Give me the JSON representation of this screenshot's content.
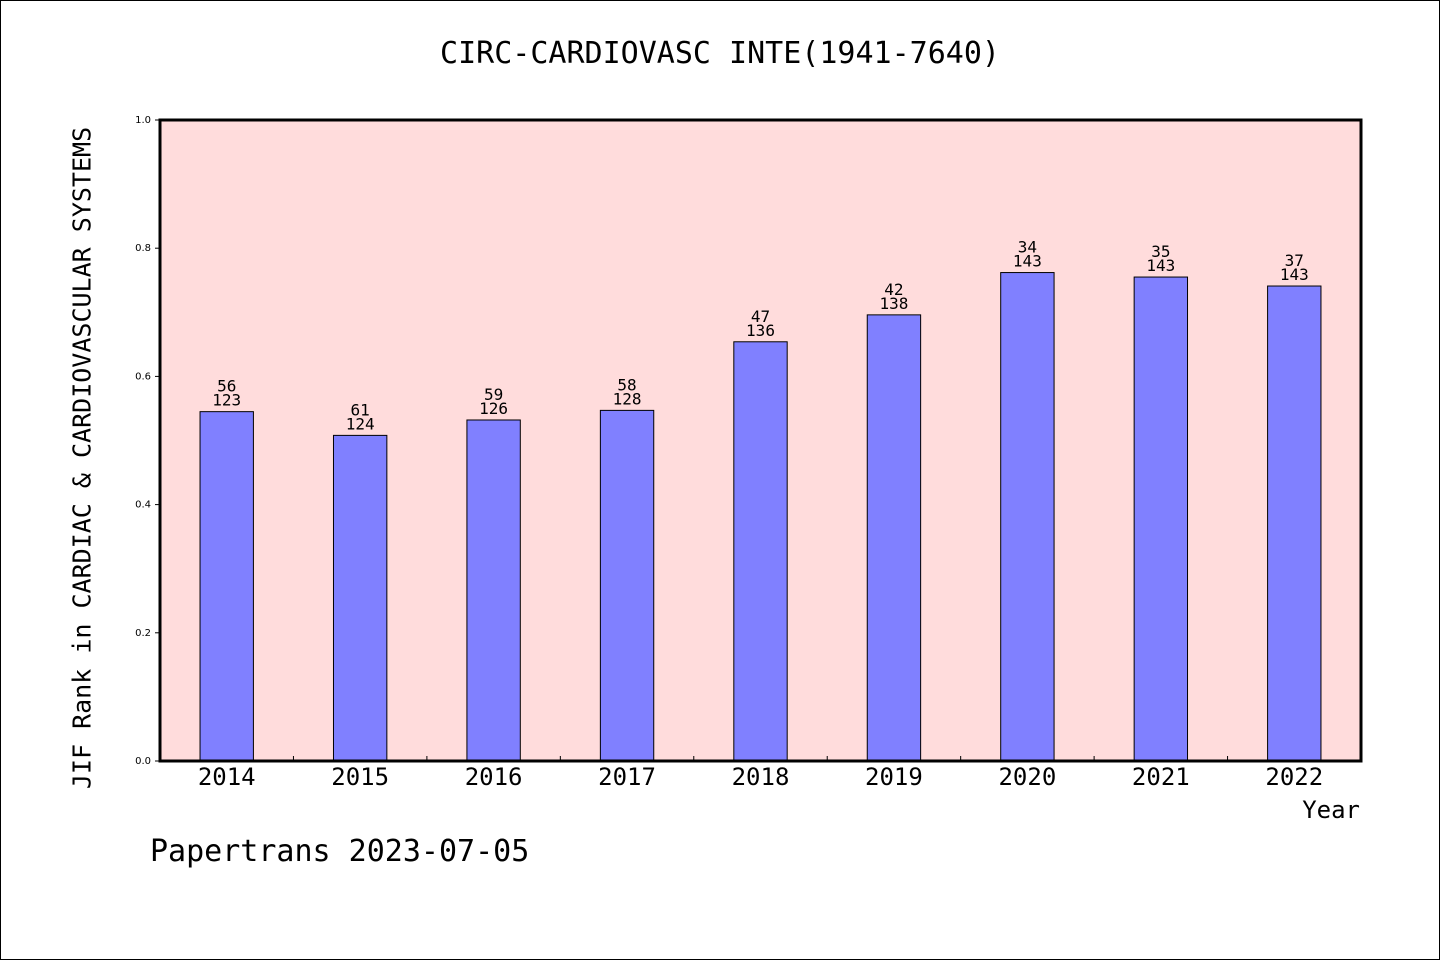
{
  "chart_data": {
    "type": "bar",
    "title": "CIRC-CARDIOVASC INTE(1941-7640)",
    "xlabel": "Year",
    "ylabel": "JIF Rank in CARDIAC & CARDIOVASCULAR SYSTEMS",
    "ylim": [
      0,
      1.0
    ],
    "yticks": [
      "0.0",
      "0.2",
      "0.4",
      "0.6",
      "0.8",
      "1.0"
    ],
    "categories": [
      "2014",
      "2015",
      "2016",
      "2017",
      "2018",
      "2019",
      "2020",
      "2021",
      "2022"
    ],
    "values": [
      0.545,
      0.508,
      0.532,
      0.547,
      0.654,
      0.696,
      0.762,
      0.755,
      0.741
    ],
    "rank": [
      "56",
      "61",
      "59",
      "58",
      "47",
      "42",
      "34",
      "35",
      "37"
    ],
    "total": [
      "123",
      "124",
      "126",
      "128",
      "136",
      "138",
      "143",
      "143",
      "143"
    ],
    "grid": false,
    "colors": {
      "bar": "#8080ff",
      "plot_background": "#ffdcdc",
      "frame": "#000000"
    }
  },
  "footer": "Papertrans 2023-07-05"
}
